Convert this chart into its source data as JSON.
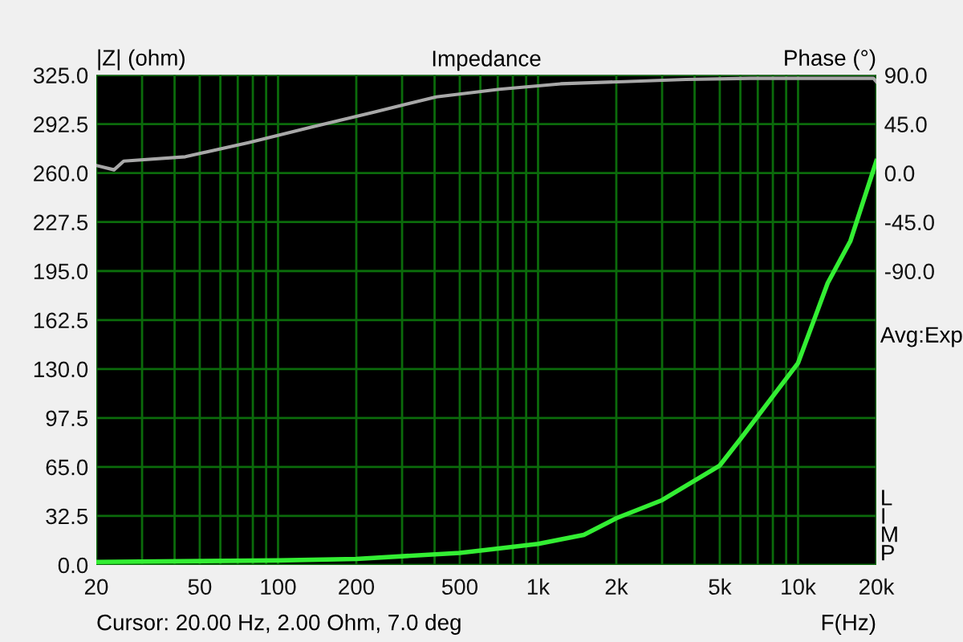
{
  "chart_data": {
    "type": "line",
    "title": "Impedance",
    "ylabel": "|Z| (ohm)",
    "y2label": "Phase (°)",
    "xlabel": "F(Hz)",
    "annotations": [
      "Cursor: 20.00 Hz, 2.00 Ohm, 7.0 deg",
      "Avg:Exp",
      "L\nI\nM\nP"
    ],
    "log": "x",
    "grid": true,
    "xlim": [
      20,
      20000
    ],
    "xticks": [
      20,
      {
        "value": 30,
        "label": null
      },
      {
        "value": 40,
        "label": null
      },
      50,
      {
        "value": 60,
        "label": null
      },
      {
        "value": 70,
        "label": null
      },
      {
        "value": 80,
        "label": null
      },
      {
        "value": 90,
        "label": null
      },
      100,
      200,
      {
        "value": 300,
        "label": null
      },
      {
        "value": 400,
        "label": null
      },
      500,
      {
        "value": 600,
        "label": null
      },
      {
        "value": 700,
        "label": null
      },
      {
        "value": 800,
        "label": null
      },
      {
        "value": 900,
        "label": null
      },
      {
        "value": 1000,
        "label": "1k"
      },
      {
        "value": 2000,
        "label": "2k"
      },
      {
        "value": 3000,
        "label": null
      },
      {
        "value": 4000,
        "label": null
      },
      {
        "value": 5000,
        "label": "5k"
      },
      {
        "value": 6000,
        "label": null
      },
      {
        "value": 7000,
        "label": null
      },
      {
        "value": 8000,
        "label": null
      },
      {
        "value": 9000,
        "label": null
      },
      {
        "value": 10000,
        "label": "10k"
      },
      {
        "value": 20000,
        "label": "20k"
      }
    ],
    "ylim": [
      0,
      325
    ],
    "yticks": [
      {
        "value": 0,
        "label": "0.0"
      },
      {
        "value": 32.5,
        "label": "32.5"
      },
      {
        "value": 65,
        "label": "65.0"
      },
      {
        "value": 97.5,
        "label": "97.5"
      },
      {
        "value": 130,
        "label": "130.0"
      },
      {
        "value": 162.5,
        "label": "162.5"
      },
      {
        "value": 195,
        "label": "195.0"
      },
      {
        "value": 227.5,
        "label": "227.5"
      },
      {
        "value": 260,
        "label": "260.0"
      },
      {
        "value": 292.5,
        "label": "292.5"
      },
      {
        "value": 325,
        "label": "325.0"
      }
    ],
    "y2lim": [
      -360,
      90
    ],
    "y2ticks": [
      {
        "value": -90,
        "label": "-90.0"
      },
      {
        "value": -45,
        "label": "-45.0"
      },
      {
        "value": 0,
        "label": "0.0"
      },
      {
        "value": 45,
        "label": "45.0"
      },
      {
        "value": 90,
        "label": "90.0"
      }
    ],
    "series": [
      {
        "color": "#a8a8a8",
        "axis": "y2",
        "x": [
          20,
          23.4,
          25.5,
          44,
          77,
          133,
          234,
          406,
          709,
          1222,
          2140,
          3700,
          6540,
          19500,
          20000
        ],
        "values": [
          7,
          3,
          11,
          15,
          28,
          42,
          56,
          70,
          77,
          82,
          84,
          86,
          87,
          87,
          84
        ]
      },
      {
        "color": "#33ee33",
        "x": [
          20,
          100,
          200,
          500,
          632,
          1000,
          1500,
          2000,
          3000,
          5000,
          6030,
          10000,
          13000,
          15900,
          20000
        ],
        "values": [
          2,
          3,
          4,
          8,
          10,
          14,
          20,
          31,
          43,
          66,
          84,
          134,
          187,
          215,
          268
        ]
      }
    ]
  }
}
